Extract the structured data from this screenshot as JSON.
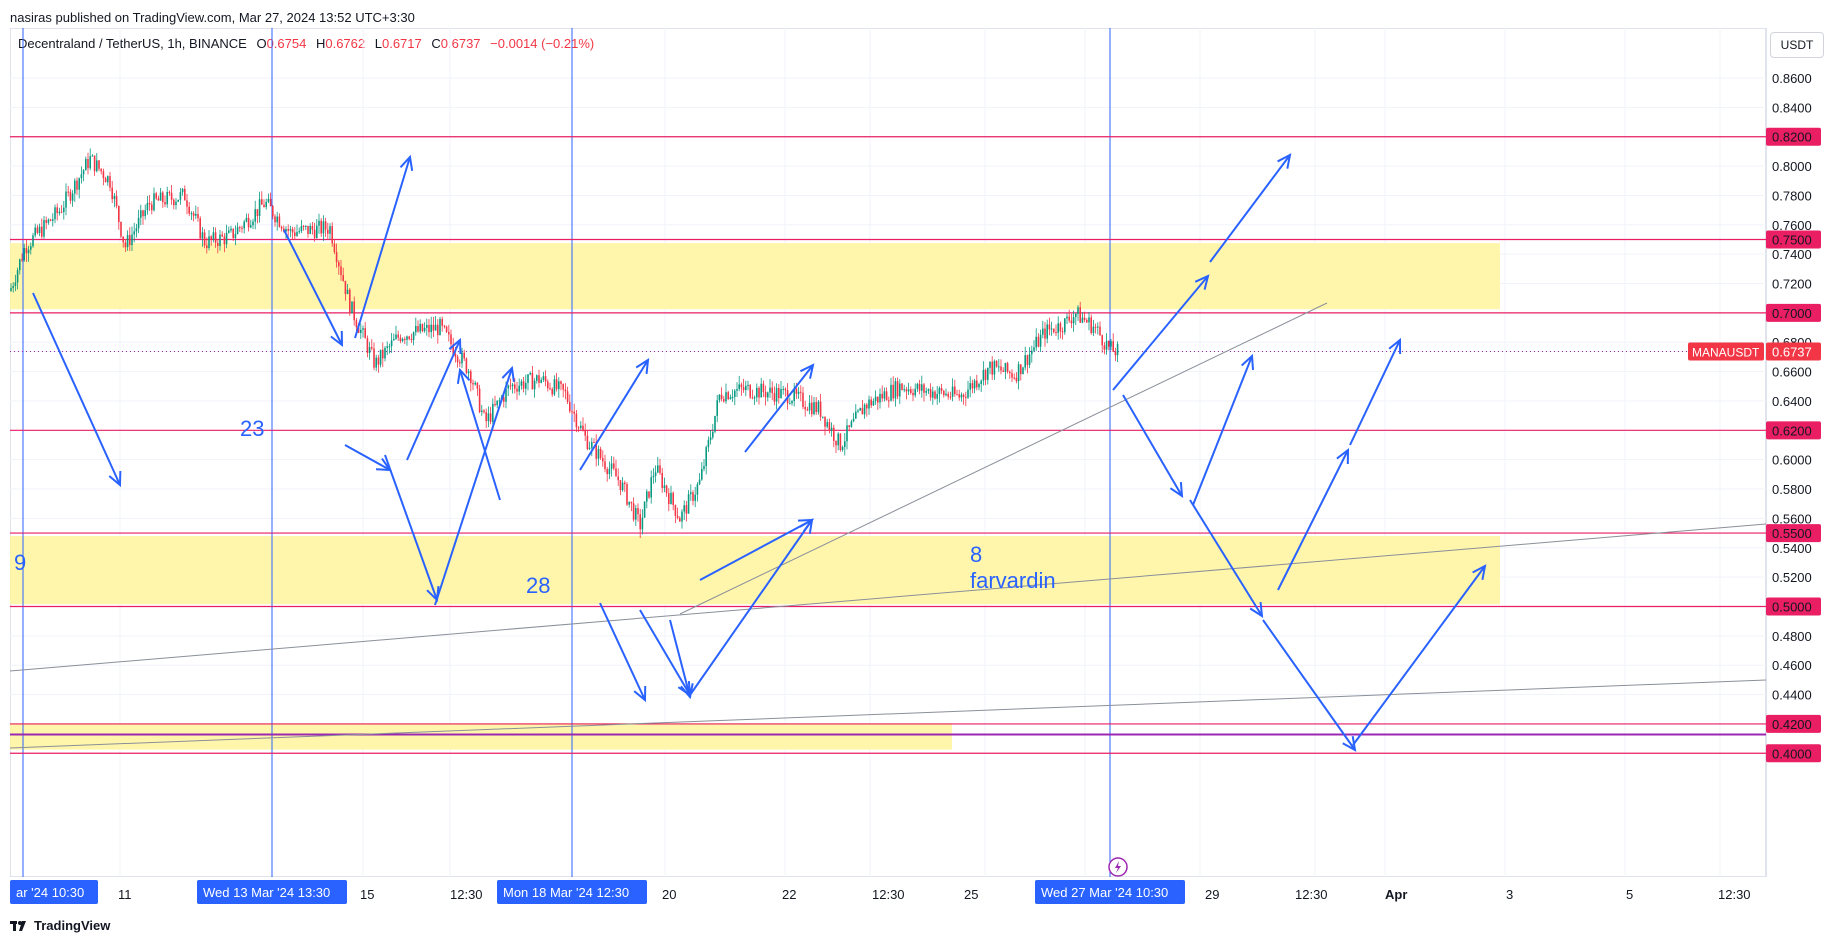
{
  "publish_text": "nasiras published on TradingView.com, Mar 27, 2024 13:52 UTC+3:30",
  "legend": {
    "symbol": "Decentraland / TetherUS, 1h, BINANCE",
    "o_label": "O",
    "o": "0.6754",
    "h_label": "H",
    "h": "0.6762",
    "l_label": "L",
    "l": "0.6717",
    "c_label": "C",
    "c": "0.6737",
    "change": "−0.0014 (−0.21%)"
  },
  "currency_button": "USDT",
  "price_ticks": [
    "0.8600",
    "0.8400",
    "0.8200",
    "0.8000",
    "0.7800",
    "0.7600",
    "0.7500",
    "0.7400",
    "0.7200",
    "0.7000",
    "0.6800",
    "0.6737",
    "0.6600",
    "0.6400",
    "0.6200",
    "0.6000",
    "0.5800",
    "0.5600",
    "0.5500",
    "0.5400",
    "0.5200",
    "0.5000",
    "0.4800",
    "0.4600",
    "0.4400",
    "0.4200",
    "0.4000"
  ],
  "highlight_prices": [
    "0.8200",
    "0.7500",
    "0.7000",
    "0.6200",
    "0.5500",
    "0.5000",
    "0.4200",
    "0.4000"
  ],
  "current_symbol_label": "MANAUSDT",
  "current_price_label": "0.6737",
  "time_ticks": [
    "11",
    "15",
    "12:30",
    "20",
    "22",
    "12:30",
    "25",
    "29",
    "12:30",
    "Apr",
    "3",
    "5",
    "12:30"
  ],
  "time_highlights": [
    "ar '24   10:30",
    "Wed 13 Mar '24   13:30",
    "Mon 18 Mar '24   12:30",
    "Wed 27 Mar '24   10:30"
  ],
  "annotations": [
    "9",
    "23",
    "28",
    "8",
    "farvardin"
  ],
  "footer_brand": "TradingView",
  "colors": {
    "up": "#089981",
    "down": "#f23645",
    "zone": "#fff59d",
    "level": "#e91e63",
    "drawing": "#2962ff"
  }
}
